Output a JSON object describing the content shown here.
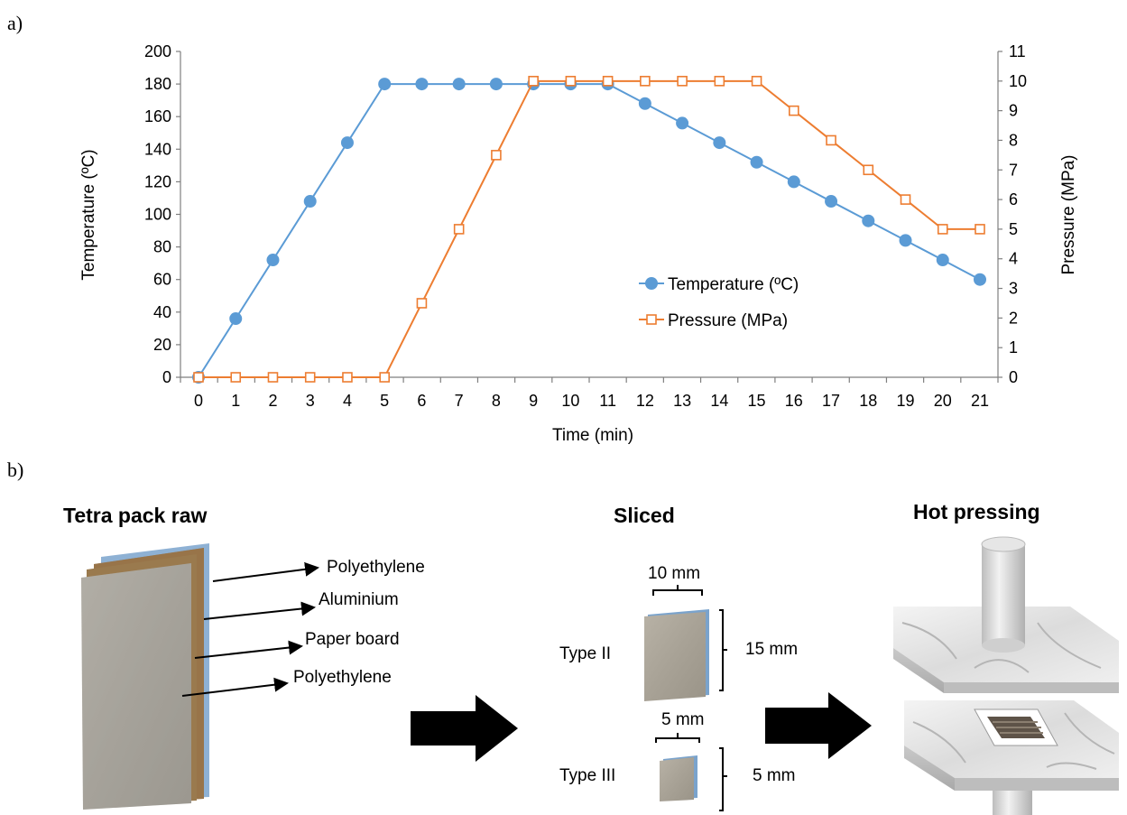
{
  "panel_a_label": "a)",
  "panel_b_label": "b)",
  "chart_data": {
    "type": "line",
    "title": "",
    "xlabel": "Time (min)",
    "ylabel": "Temperature (ºC)",
    "y2label": "Pressure (MPa)",
    "x": [
      0,
      1,
      2,
      3,
      4,
      5,
      6,
      7,
      8,
      9,
      10,
      11,
      12,
      13,
      14,
      15,
      16,
      17,
      18,
      19,
      20,
      21
    ],
    "ylim": [
      0,
      200
    ],
    "y2lim": [
      0,
      11
    ],
    "yticks": [
      0,
      20,
      40,
      60,
      80,
      100,
      120,
      140,
      160,
      180,
      200
    ],
    "y2ticks": [
      0,
      1,
      2,
      3,
      4,
      5,
      6,
      7,
      8,
      9,
      10,
      11
    ],
    "legend_position": "right-middle",
    "grid": false,
    "series": [
      {
        "name": "Temperature (ºC)",
        "axis": "left",
        "marker": "circle",
        "color": "#5b9bd5",
        "values": [
          0,
          36,
          72,
          108,
          144,
          180,
          180,
          180,
          180,
          180,
          180,
          180,
          168,
          156,
          144,
          132,
          120,
          108,
          96,
          84,
          72,
          60
        ]
      },
      {
        "name": "Pressure (MPa)",
        "axis": "right",
        "marker": "square",
        "color": "#ed7d31",
        "values": [
          0,
          0,
          0,
          0,
          0,
          0,
          2.5,
          5,
          7.5,
          10,
          10,
          10,
          10,
          10,
          10,
          10,
          9,
          8,
          7,
          6,
          5,
          5
        ]
      }
    ]
  },
  "diagram": {
    "raw_title": "Tetra pack raw",
    "sliced_title": "Sliced",
    "hot_title": "Hot pressing",
    "layers": [
      "Polyethylene",
      "Aluminium",
      "Paper board",
      "Polyethylene"
    ],
    "type2_label": "Type II",
    "type3_label": "Type III",
    "type2_width": "10 mm",
    "type2_height": "15 mm",
    "type3_width": "5 mm",
    "type3_height": "5 mm"
  }
}
